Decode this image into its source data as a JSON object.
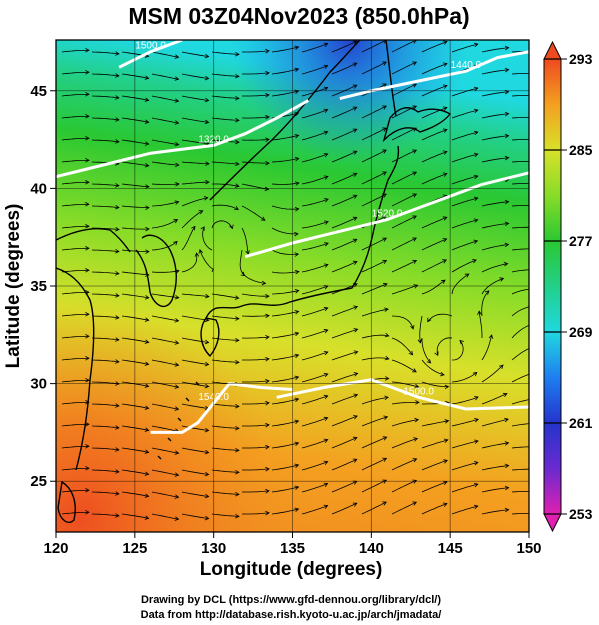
{
  "title": "MSM 03Z04Nov2023 (850.0hPa)",
  "xaxis": {
    "label": "Longitude (degrees)",
    "range": [
      120,
      150
    ],
    "ticks": [
      120,
      125,
      130,
      135,
      140,
      145,
      150
    ]
  },
  "yaxis": {
    "label": "Latitude  (degrees)",
    "range": [
      22.4,
      47.6
    ],
    "ticks": [
      25,
      30,
      35,
      40,
      45
    ]
  },
  "colorbar": {
    "range": [
      253,
      293
    ],
    "ticks": [
      253,
      261,
      269,
      277,
      285,
      293
    ],
    "stops": [
      {
        "v": 253,
        "c": "#e020b0"
      },
      {
        "v": 257,
        "c": "#6a2ad0"
      },
      {
        "v": 261,
        "c": "#2434cc"
      },
      {
        "v": 265,
        "c": "#1e7ef0"
      },
      {
        "v": 269,
        "c": "#20d8e0"
      },
      {
        "v": 273,
        "c": "#22d08a"
      },
      {
        "v": 277,
        "c": "#2ac832"
      },
      {
        "v": 281,
        "c": "#88dc28"
      },
      {
        "v": 285,
        "c": "#d8e02a"
      },
      {
        "v": 289,
        "c": "#f4a020"
      },
      {
        "v": 293,
        "c": "#ee4a20"
      }
    ]
  },
  "height_contours": [
    {
      "label": "1320.0",
      "points": [
        [
          120,
          40.6
        ],
        [
          123,
          41.2
        ],
        [
          126,
          41.8
        ],
        [
          128,
          42
        ],
        [
          130,
          42.2
        ],
        [
          132,
          42.8
        ],
        [
          134,
          43.6
        ],
        [
          136,
          44.5
        ]
      ]
    },
    {
      "label": "1440.0",
      "points": [
        [
          138,
          44.6
        ],
        [
          140,
          45
        ],
        [
          143,
          45.5
        ],
        [
          146,
          46
        ],
        [
          148,
          46.7
        ],
        [
          150,
          47
        ]
      ]
    },
    {
      "label": "1500.0",
      "points": [
        [
          124,
          46.2
        ],
        [
          126,
          47
        ],
        [
          128,
          47.6
        ]
      ]
    },
    {
      "label": "1520.0",
      "points": [
        [
          132,
          36.5
        ],
        [
          135,
          37.2
        ],
        [
          137,
          37.6
        ],
        [
          139,
          38
        ],
        [
          141,
          38.4
        ],
        [
          143,
          39
        ],
        [
          145,
          39.6
        ],
        [
          147,
          40.2
        ],
        [
          150,
          40.8
        ]
      ]
    },
    {
      "label": "1500.0",
      "points": [
        [
          134,
          29.3
        ],
        [
          137,
          29.8
        ],
        [
          140,
          30.2
        ],
        [
          143,
          29.3
        ],
        [
          146,
          28.7
        ],
        [
          150,
          28.8
        ]
      ]
    },
    {
      "label": "1540.0",
      "points": [
        [
          126,
          27.5
        ],
        [
          128,
          27.5
        ],
        [
          129,
          28
        ],
        [
          130,
          29
        ],
        [
          131,
          30
        ],
        [
          133,
          29.8
        ],
        [
          135,
          29.7
        ]
      ]
    }
  ],
  "credits": {
    "line1": "Drawing by DCL (https://www.gfd-dennou.org/library/dcl/)",
    "line2": "Data from http://database.rish.kyoto-u.ac.jp/arch/jmadata/"
  }
}
